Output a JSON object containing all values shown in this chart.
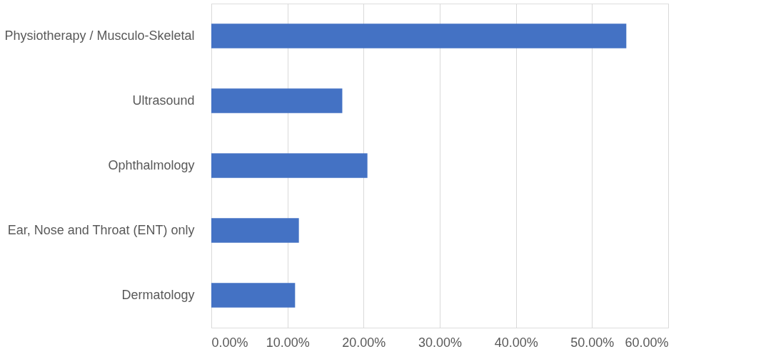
{
  "chart_data": {
    "type": "bar",
    "orientation": "horizontal",
    "categories": [
      "Physiotherapy / Musculo-Skeletal",
      "Ultrasound",
      "Ophthalmology",
      "Ear, Nose and Throat (ENT) only",
      "Dermatology"
    ],
    "values": [
      54.5,
      17.2,
      20.5,
      11.5,
      11.0
    ],
    "color": "#4472c4",
    "xlim": [
      0,
      60
    ],
    "xticks": [
      {
        "value": 0,
        "label": "0.00%"
      },
      {
        "value": 10,
        "label": "10.00%"
      },
      {
        "value": 20,
        "label": "20.00%"
      },
      {
        "value": 30,
        "label": "30.00%"
      },
      {
        "value": 40,
        "label": "40.00%"
      },
      {
        "value": 50,
        "label": "50.00%"
      },
      {
        "value": 60,
        "label": "60.00%"
      }
    ],
    "grid": "x"
  }
}
